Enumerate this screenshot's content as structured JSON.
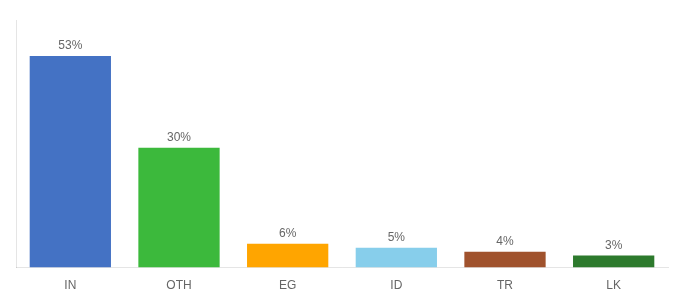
{
  "chart_data": {
    "type": "bar",
    "categories": [
      "IN",
      "OTH",
      "EG",
      "ID",
      "TR",
      "LK"
    ],
    "values": [
      53,
      30,
      6,
      5,
      4,
      3
    ],
    "colors": [
      "#4472C4",
      "#3CB93C",
      "#FFA500",
      "#87CEEB",
      "#A0522D",
      "#2D7A2D"
    ],
    "ylim": [
      0,
      62
    ],
    "grid": false,
    "data_labels": true,
    "value_labels": [
      "53%",
      "30%",
      "6%",
      "5%",
      "4%",
      "3%"
    ],
    "tick_labels": "x"
  }
}
